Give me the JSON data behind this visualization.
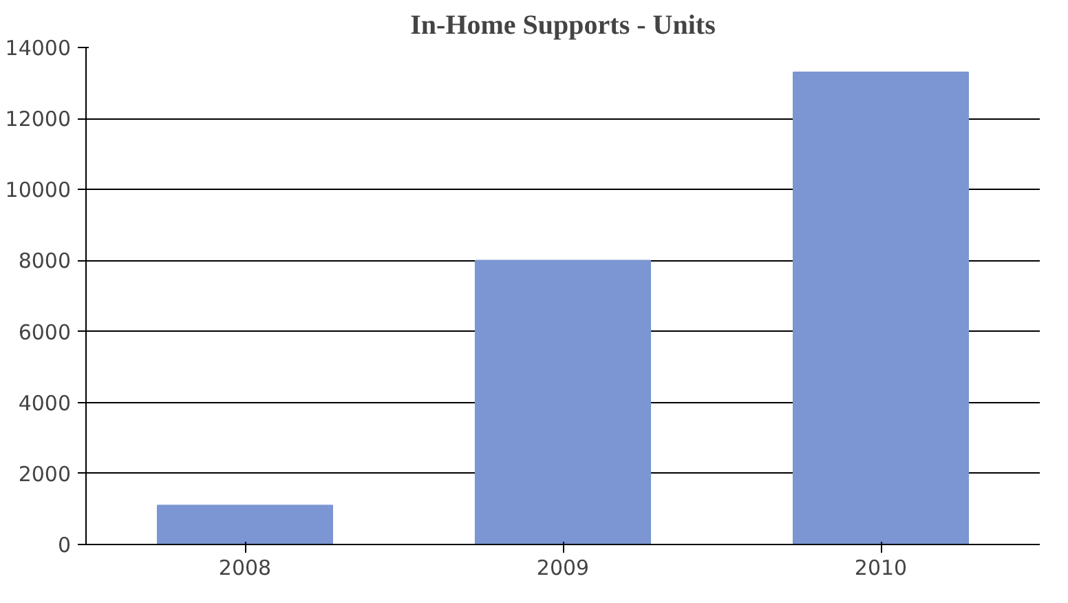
{
  "chart_data": {
    "type": "bar",
    "title": "In-Home Supports - Units",
    "categories": [
      "2008",
      "2009",
      "2010"
    ],
    "values": [
      1100,
      8000,
      13300
    ],
    "color": "#7b96d2",
    "ylim": [
      0,
      14000
    ],
    "yticks": [
      0,
      2000,
      4000,
      6000,
      8000,
      10000,
      12000,
      14000
    ],
    "grid": "y"
  }
}
